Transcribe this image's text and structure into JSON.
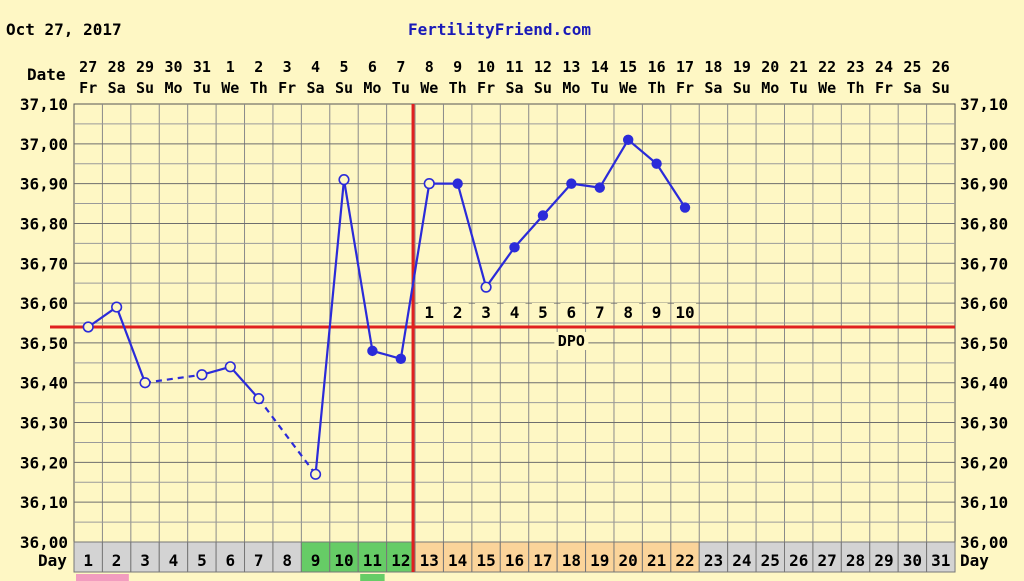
{
  "header": {
    "date_text": "Oct 27, 2017",
    "site_text": "FertilityFriend.com",
    "site_color": "#1a1ab8"
  },
  "chart_data": {
    "type": "line",
    "ylabel": "",
    "row_labels": {
      "date": "Date",
      "day": "Day"
    },
    "ylim": [
      36.0,
      37.1
    ],
    "y_ticks": [
      "37,10",
      "37,00",
      "36,90",
      "36,80",
      "36,70",
      "36,60",
      "36,50",
      "36,40",
      "36,30",
      "36,20",
      "36,10",
      "36,00"
    ],
    "date_numbers": [
      "27",
      "28",
      "29",
      "30",
      "31",
      "1",
      "2",
      "3",
      "4",
      "5",
      "6",
      "7",
      "8",
      "9",
      "10",
      "11",
      "12",
      "13",
      "14",
      "15",
      "16",
      "17",
      "18",
      "19",
      "20",
      "21",
      "22",
      "23",
      "24",
      "25",
      "26"
    ],
    "weekdays": [
      "Fr",
      "Sa",
      "Su",
      "Mo",
      "Tu",
      "We",
      "Th",
      "Fr",
      "Sa",
      "Su",
      "Mo",
      "Tu",
      "We",
      "Th",
      "Fr",
      "Sa",
      "Su",
      "Mo",
      "Tu",
      "We",
      "Th",
      "Fr",
      "Sa",
      "Su",
      "Mo",
      "Tu",
      "We",
      "Th",
      "Fr",
      "Sa",
      "Su"
    ],
    "cycle_days": [
      "1",
      "2",
      "3",
      "4",
      "5",
      "6",
      "7",
      "8",
      "9",
      "10",
      "11",
      "12",
      "13",
      "14",
      "15",
      "16",
      "17",
      "18",
      "19",
      "20",
      "21",
      "22",
      "23",
      "24",
      "25",
      "26",
      "27",
      "28",
      "29",
      "30",
      "31"
    ],
    "day_cell_colors": [
      "#d3d3d3",
      "#d3d3d3",
      "#d3d3d3",
      "#d3d3d3",
      "#d3d3d3",
      "#d3d3d3",
      "#d3d3d3",
      "#d3d3d3",
      "#66cc66",
      "#66cc66",
      "#66cc66",
      "#66cc66",
      "#fbd49a",
      "#fbd49a",
      "#fbd49a",
      "#fbd49a",
      "#fbd49a",
      "#fbd49a",
      "#fbd49a",
      "#fbd49a",
      "#fbd49a",
      "#fbd49a",
      "#d3d3d3",
      "#d3d3d3",
      "#d3d3d3",
      "#d3d3d3",
      "#d3d3d3",
      "#d3d3d3",
      "#d3d3d3",
      "#d3d3d3",
      "#d3d3d3"
    ],
    "series": [
      {
        "color": "#2b2bd9",
        "points": [
          {
            "day": 1,
            "temp": 36.54,
            "style": "open"
          },
          {
            "day": 2,
            "temp": 36.59,
            "style": "open"
          },
          {
            "day": 3,
            "temp": 36.4,
            "style": "open"
          },
          {
            "day": 5,
            "temp": 36.42,
            "style": "open"
          },
          {
            "day": 6,
            "temp": 36.44,
            "style": "open"
          },
          {
            "day": 7,
            "temp": 36.36,
            "style": "open"
          },
          {
            "day": 9,
            "temp": 36.17,
            "style": "open"
          },
          {
            "day": 10,
            "temp": 36.91,
            "style": "open"
          },
          {
            "day": 11,
            "temp": 36.48,
            "style": "filled"
          },
          {
            "day": 12,
            "temp": 36.46,
            "style": "filled"
          },
          {
            "day": 13,
            "temp": 36.9,
            "style": "open"
          },
          {
            "day": 14,
            "temp": 36.9,
            "style": "filled"
          },
          {
            "day": 15,
            "temp": 36.64,
            "style": "open"
          },
          {
            "day": 16,
            "temp": 36.74,
            "style": "filled"
          },
          {
            "day": 17,
            "temp": 36.82,
            "style": "filled"
          },
          {
            "day": 18,
            "temp": 36.9,
            "style": "filled"
          },
          {
            "day": 19,
            "temp": 36.89,
            "style": "filled"
          },
          {
            "day": 20,
            "temp": 37.01,
            "style": "filled"
          },
          {
            "day": 21,
            "temp": 36.95,
            "style": "filled"
          },
          {
            "day": 22,
            "temp": 36.84,
            "style": "filled"
          }
        ],
        "dashed_gaps": [
          [
            3,
            5
          ],
          [
            7,
            9
          ]
        ]
      }
    ],
    "coverline": {
      "temp": 36.54,
      "color": "#e02020"
    },
    "ovulation_day": 12,
    "dpo_labels": [
      "1",
      "2",
      "3",
      "4",
      "5",
      "6",
      "7",
      "8",
      "9",
      "10"
    ],
    "dpo_text": "DPO",
    "grid": true
  }
}
